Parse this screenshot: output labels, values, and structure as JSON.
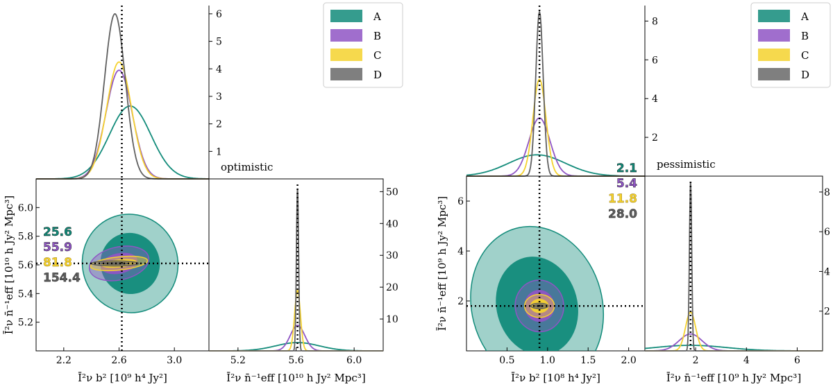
{
  "colors": {
    "A": "#128b7a",
    "B": "#8f55c4",
    "C": "#f5d22e",
    "D": "#5f5f5f"
  },
  "legend": [
    "A",
    "B",
    "C",
    "D"
  ],
  "chart_data": [
    {
      "type": "corner",
      "label": "optimistic",
      "param1": {
        "label": "Ī²ν b² [10⁹ h⁴ Jy²]",
        "lim": [
          2.0,
          3.25
        ],
        "ticks": [
          "2.2",
          "2.6",
          "3.0"
        ],
        "tick_values": [
          2.2,
          2.6,
          3.0
        ],
        "truth": 2.62
      },
      "param2": {
        "label": "Ī²ν n̄⁻¹eff [10¹⁰ h Jy² Mpc³]",
        "lim": [
          5.0,
          6.2
        ],
        "ticks": [
          "5.2",
          "5.4",
          "5.6",
          "5.8",
          "6.0"
        ],
        "tick_values": [
          5.2,
          5.4,
          5.6,
          5.8,
          6.0
        ],
        "truth": 5.61
      },
      "marg1": {
        "ylim": [
          0,
          6.3
        ],
        "yticks": [
          "1",
          "2",
          "3",
          "4",
          "5",
          "6"
        ],
        "ytick_values": [
          1,
          2,
          3,
          4,
          5,
          6
        ]
      },
      "marg2": {
        "xlim": [
          5.0,
          6.2
        ],
        "xticks": [
          "5.2",
          "5.6",
          "6.0"
        ],
        "xtick_values": [
          5.2,
          5.6,
          6.0
        ],
        "ylim": [
          0,
          54
        ],
        "yticks": [
          "10",
          "20",
          "30",
          "40",
          "50"
        ],
        "ytick_values": [
          10,
          20,
          30,
          40,
          50
        ]
      },
      "stats": [
        {
          "key": "A",
          "value": "25.6"
        },
        {
          "key": "B",
          "value": "55.9"
        },
        {
          "key": "C",
          "value": "81.8"
        },
        {
          "key": "D",
          "value": "154.4"
        }
      ],
      "series": [
        {
          "name": "A",
          "peak1": 2.68,
          "sigma1": 0.15,
          "height1": 2.65,
          "peak2": 5.61,
          "sigma2": 0.15,
          "height2": 2.6,
          "corr": -0.3
        },
        {
          "name": "B",
          "peak1": 2.6,
          "sigma1": 0.095,
          "height1": 3.95,
          "peak2": 5.61,
          "sigma2": 0.05,
          "height2": 8.0,
          "corr": -0.2
        },
        {
          "name": "C",
          "peak1": 2.6,
          "sigma1": 0.09,
          "height1": 4.25,
          "peak2": 5.61,
          "sigma2": 0.02,
          "height2": 19.0,
          "corr": -0.1
        },
        {
          "name": "D",
          "peak1": 2.57,
          "sigma1": 0.075,
          "height1": 6.0,
          "peak2": 5.61,
          "sigma2": 0.0077,
          "height2": 51.0,
          "corr": 0.0
        }
      ]
    },
    {
      "type": "corner",
      "label": "pessimistic",
      "param1": {
        "label": "Ī²ν b² [10⁸ h⁴ Jy²]",
        "lim": [
          0.0,
          2.2
        ],
        "ticks": [
          "0.5",
          "1.0",
          "1.5",
          "2.0"
        ],
        "tick_values": [
          0.5,
          1.0,
          1.5,
          2.0
        ],
        "truth": 0.9
      },
      "param2": {
        "label": "Ī²ν n̄⁻¹eff [10⁹ h Jy² Mpc³]",
        "lim": [
          0.0,
          7.0
        ],
        "ticks": [
          "2",
          "4",
          "6"
        ],
        "tick_values": [
          2,
          4,
          6
        ],
        "truth": 1.8
      },
      "marg1": {
        "ylim": [
          0,
          8.8
        ],
        "yticks": [
          "2",
          "4",
          "6",
          "8"
        ],
        "ytick_values": [
          2,
          4,
          6,
          8
        ]
      },
      "marg2": {
        "xlim": [
          0.0,
          7.0
        ],
        "xticks": [
          "2",
          "4",
          "6"
        ],
        "xtick_values": [
          2,
          4,
          6
        ],
        "ylim": [
          0,
          8.8
        ],
        "yticks": [
          "2",
          "4",
          "6",
          "8"
        ],
        "ytick_values": [
          2,
          4,
          6,
          8
        ]
      },
      "stats": [
        {
          "key": "A",
          "value": "2.1"
        },
        {
          "key": "B",
          "value": "5.4"
        },
        {
          "key": "C",
          "value": "11.8"
        },
        {
          "key": "D",
          "value": "28.0"
        }
      ],
      "series": [
        {
          "name": "A",
          "peak1": 0.87,
          "sigma1": 0.35,
          "height1": 1.1,
          "peak2": 1.8,
          "sigma2": 1.4,
          "height2": 0.28,
          "corr": -0.25
        },
        {
          "name": "B",
          "peak1": 0.9,
          "sigma1": 0.13,
          "height1": 3.0,
          "peak2": 1.8,
          "sigma2": 0.45,
          "height2": 0.85,
          "corr": -0.1
        },
        {
          "name": "C",
          "peak1": 0.9,
          "sigma1": 0.08,
          "height1": 5.0,
          "peak2": 1.8,
          "sigma2": 0.2,
          "height2": 1.95,
          "corr": 0.0
        },
        {
          "name": "D",
          "peak1": 0.9,
          "sigma1": 0.046,
          "height1": 8.5,
          "peak2": 1.8,
          "sigma2": 0.046,
          "height2": 8.5,
          "corr": 0.0
        }
      ]
    }
  ]
}
